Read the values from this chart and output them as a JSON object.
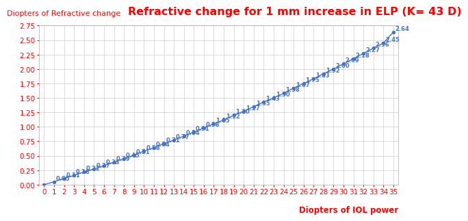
{
  "title": "Refractive change for 1 mm increase in ELP (K= 43 D)",
  "ylabel": "Diopters of Refractive change",
  "xlabel": "Diopters of IOL power",
  "x": [
    0,
    1,
    2,
    3,
    4,
    5,
    6,
    7,
    8,
    9,
    10,
    11,
    12,
    13,
    14,
    15,
    16,
    17,
    18,
    19,
    20,
    21,
    22,
    23,
    24,
    25,
    26,
    27,
    28,
    29,
    30,
    31,
    32,
    33,
    34,
    35
  ],
  "y": [
    0.0,
    0.05,
    0.11,
    0.16,
    0.22,
    0.27,
    0.33,
    0.39,
    0.45,
    0.51,
    0.58,
    0.64,
    0.71,
    0.77,
    0.84,
    0.91,
    0.98,
    1.05,
    1.12,
    1.2,
    1.27,
    1.35,
    1.43,
    1.5,
    1.58,
    1.67,
    1.75,
    1.83,
    1.92,
    2.0,
    2.09,
    2.18,
    2.27,
    2.36,
    2.45,
    2.64
  ],
  "line_color": "#4472C4",
  "marker_color": "#4472C4",
  "label_color": "#4472C4",
  "title_color": "#FF0000",
  "axis_label_color": "#FF0000",
  "tick_label_color": "#FF0000",
  "background_color": "#FFFFFF",
  "grid_color": "#CCCCCC",
  "ylim": [
    0.0,
    2.75
  ],
  "yticks": [
    0.0,
    0.25,
    0.5,
    0.75,
    1.0,
    1.25,
    1.5,
    1.75,
    2.0,
    2.25,
    2.5,
    2.75
  ],
  "xticks": [
    0,
    1,
    2,
    3,
    4,
    5,
    6,
    7,
    8,
    9,
    10,
    11,
    12,
    13,
    14,
    15,
    16,
    17,
    18,
    19,
    20,
    21,
    22,
    23,
    24,
    25,
    26,
    27,
    28,
    29,
    30,
    31,
    32,
    33,
    34,
    35
  ],
  "title_fontsize": 11.5,
  "axis_label_fontsize": 8.5,
  "tick_fontsize": 7.5,
  "data_label_fontsize": 6.0,
  "ylabel_fontsize": 8.0
}
